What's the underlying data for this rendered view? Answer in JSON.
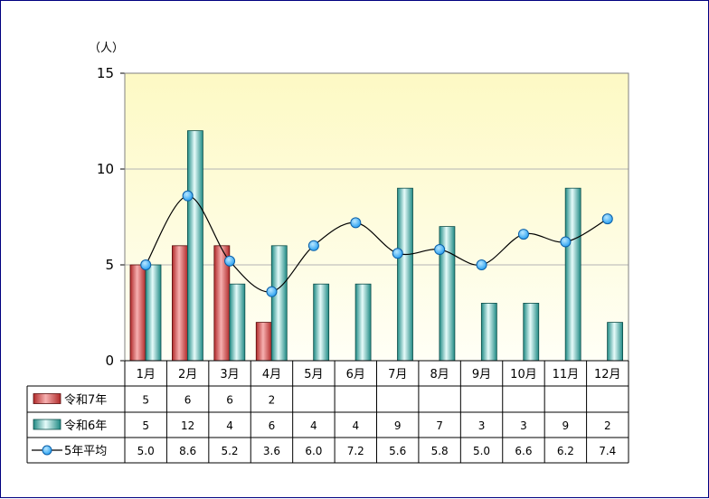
{
  "chart_data": {
    "type": "bar",
    "unit_label": "（人）",
    "ylim": [
      0,
      15
    ],
    "yticks": [
      "0",
      "5",
      "10",
      "15"
    ],
    "categories": [
      "1月",
      "2月",
      "3月",
      "4月",
      "5月",
      "6月",
      "7月",
      "8月",
      "9月",
      "10月",
      "11月",
      "12月"
    ],
    "series": [
      {
        "name": "令和7年",
        "type": "bar",
        "color": "#d94a4a",
        "values": [
          5,
          6,
          6,
          2,
          null,
          null,
          null,
          null,
          null,
          null,
          null,
          null
        ],
        "labels": [
          "5",
          "6",
          "6",
          "2",
          "",
          "",
          "",
          "",
          "",
          "",
          "",
          ""
        ]
      },
      {
        "name": "令和6年",
        "type": "bar",
        "color": "#2fa8a0",
        "values": [
          5,
          12,
          4,
          6,
          4,
          4,
          9,
          7,
          3,
          3,
          9,
          2
        ],
        "labels": [
          "5",
          "12",
          "4",
          "6",
          "4",
          "4",
          "9",
          "7",
          "3",
          "3",
          "9",
          "2"
        ]
      },
      {
        "name": "5年平均",
        "type": "line",
        "color": "#1ea0ff",
        "values": [
          5.0,
          8.6,
          5.2,
          3.6,
          6.0,
          7.2,
          5.6,
          5.8,
          5.0,
          6.6,
          6.2,
          7.4
        ],
        "labels": [
          "5.0",
          "8.6",
          "5.2",
          "3.6",
          "6.0",
          "7.2",
          "5.6",
          "5.8",
          "5.0",
          "6.6",
          "6.2",
          "7.4"
        ]
      }
    ],
    "grid": true,
    "plot_background": "#fffde0",
    "legend_placement": "data-table"
  }
}
